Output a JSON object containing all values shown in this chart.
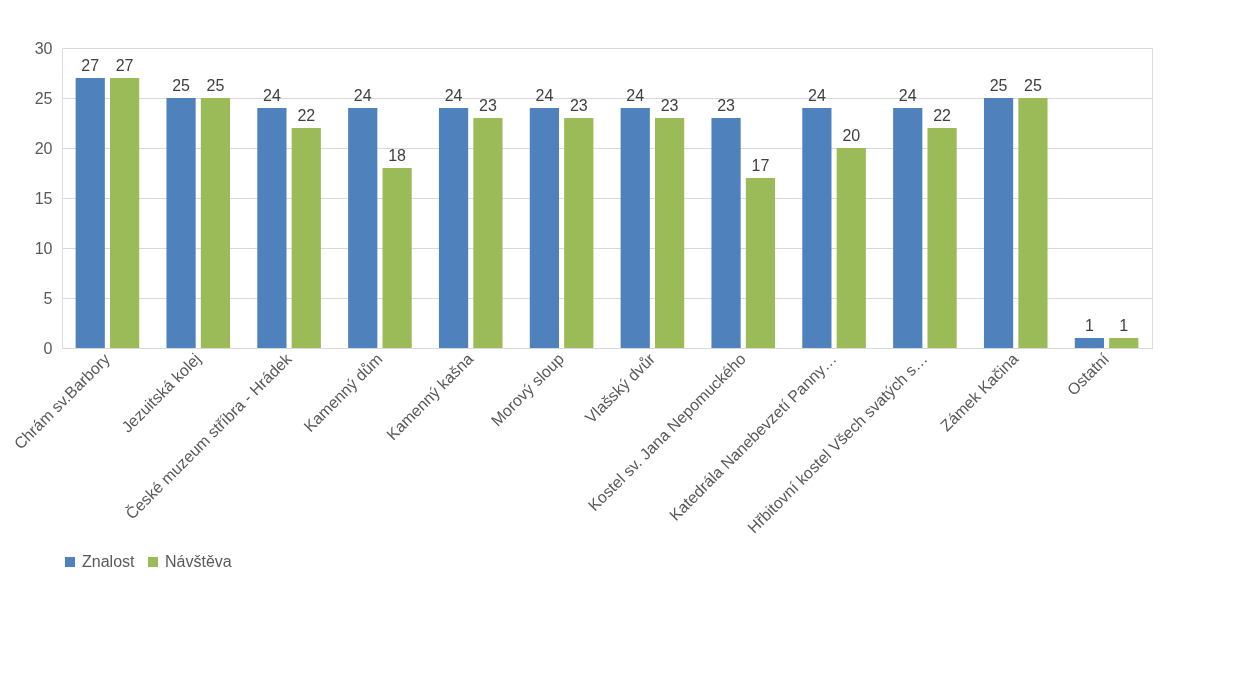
{
  "chart_data": {
    "type": "bar",
    "categories": [
      "Chrám sv.Barbory",
      "Jezuitská kolej",
      "České muzeum stříbra - Hrádek",
      "Kamenný dům",
      "Kamenný kašna",
      "Morový sloup",
      "Vlašský dvůr",
      "Kostel sv. Jana Nepomuckého",
      "Katedrála Nanebevzetí Panny…",
      "Hřbitovní kostel Všech svatých s…",
      "Zámek Kačina",
      "Ostatní"
    ],
    "series": [
      {
        "name": "Znalost",
        "color": "#4f81bd",
        "values": [
          27,
          25,
          24,
          24,
          24,
          24,
          24,
          23,
          24,
          24,
          25,
          1
        ]
      },
      {
        "name": "Návštěva",
        "color": "#9bbb59",
        "values": [
          27,
          25,
          22,
          18,
          23,
          23,
          23,
          17,
          20,
          22,
          25,
          1
        ]
      }
    ],
    "ylim": [
      0,
      30
    ],
    "yticks": [
      0,
      5,
      10,
      15,
      20,
      25,
      30
    ],
    "grid": "y",
    "legend": "bottom",
    "data_labels": true
  }
}
